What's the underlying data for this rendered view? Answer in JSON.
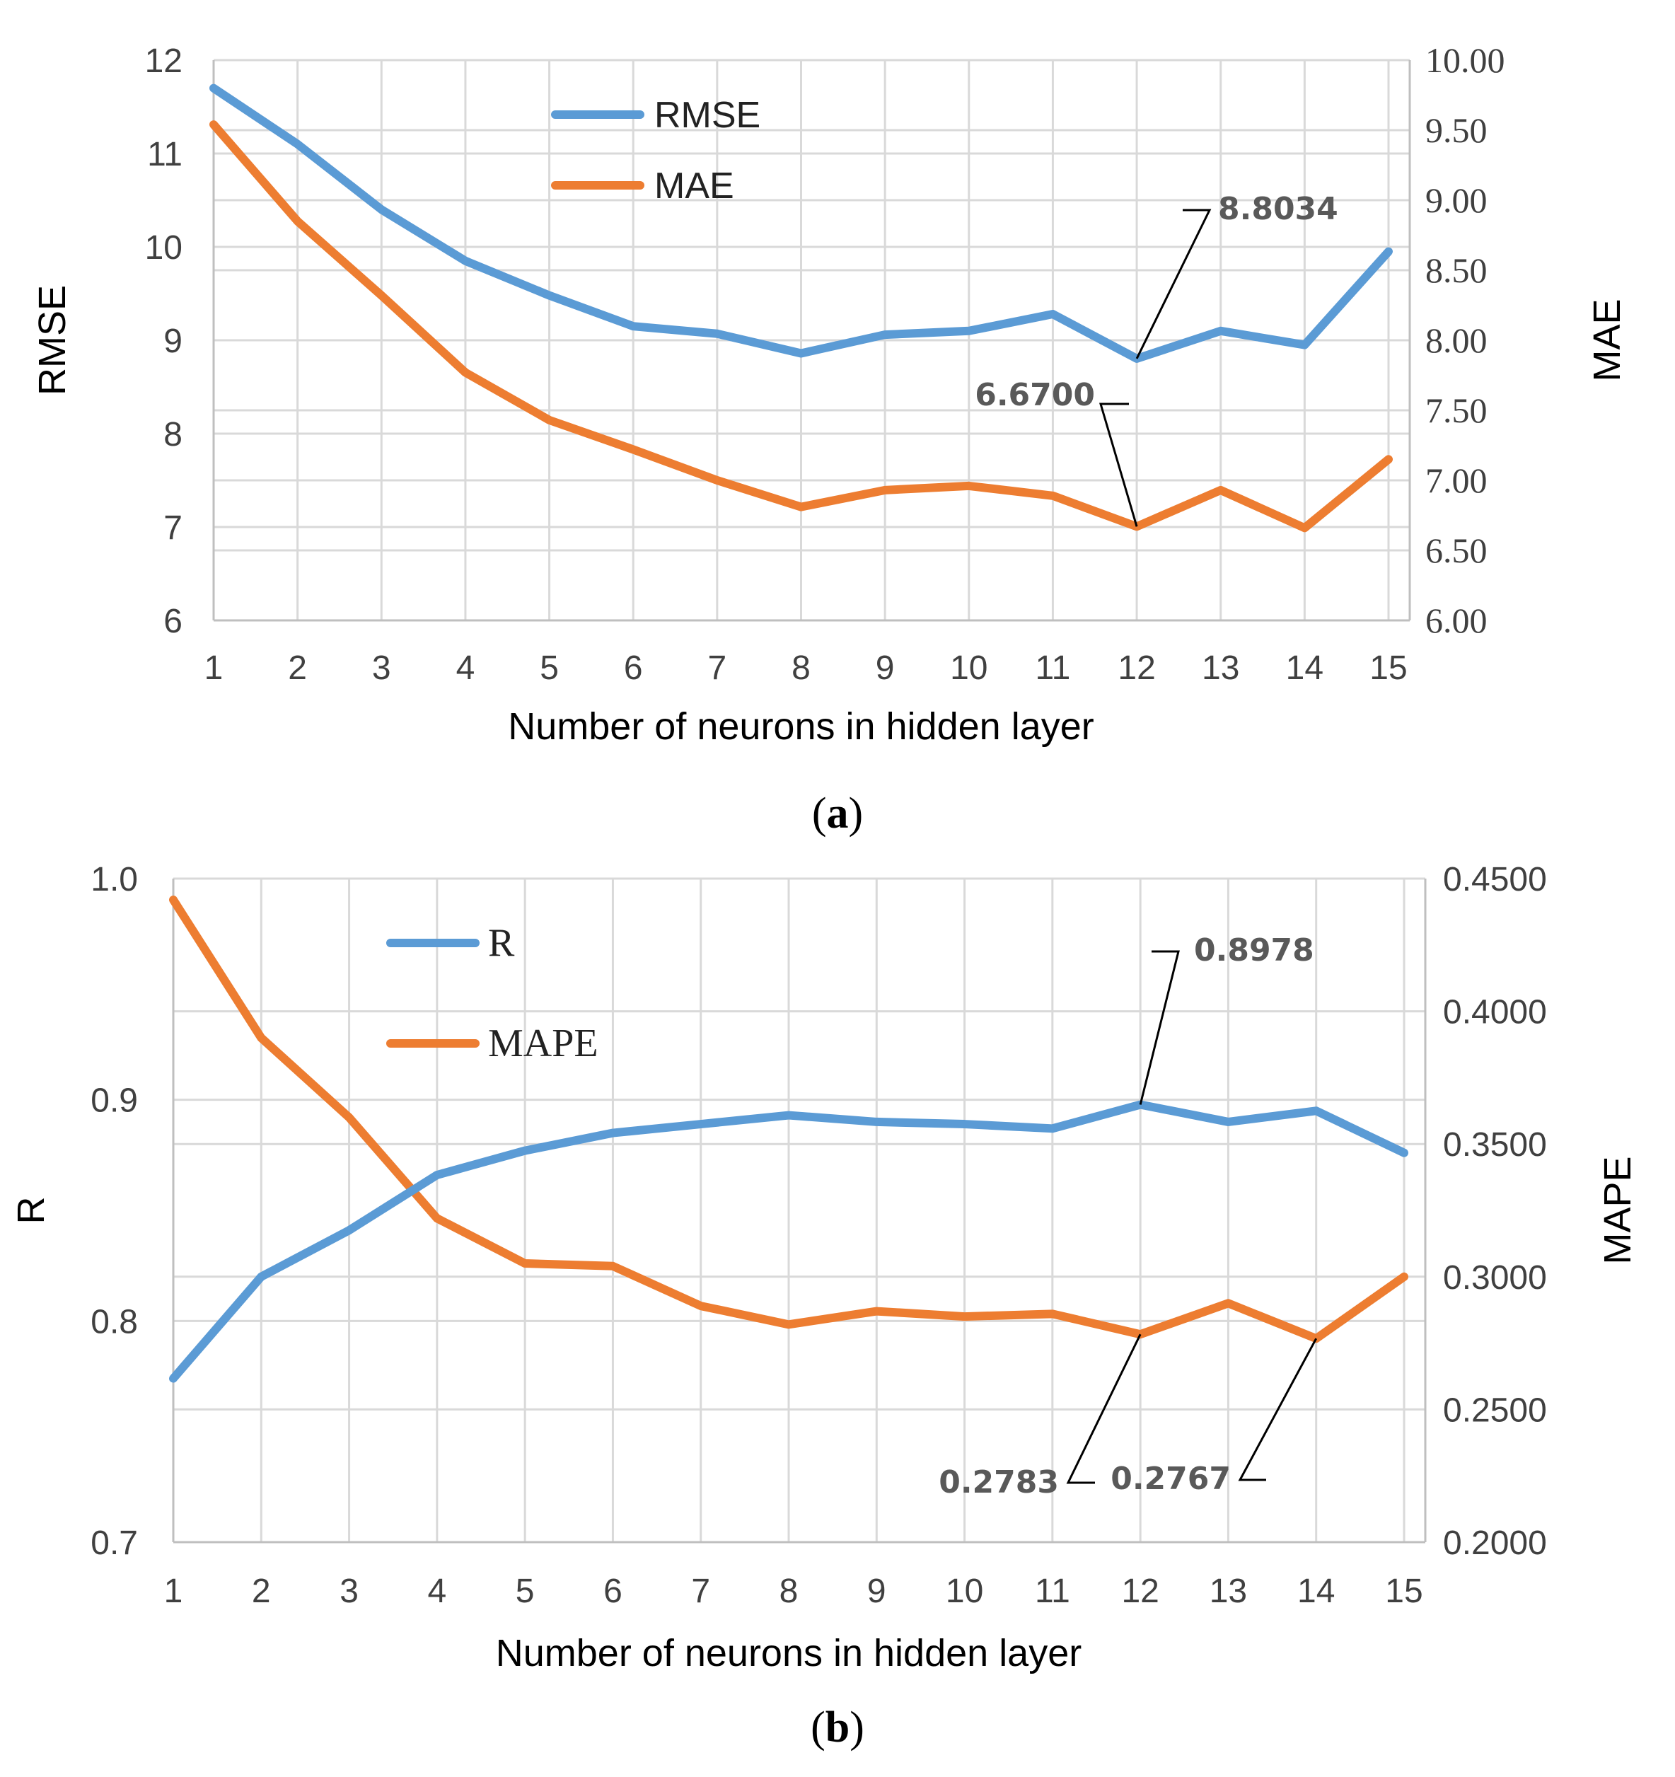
{
  "colors": {
    "blue": "#5b9bd5",
    "orange": "#ed7d31"
  },
  "chart_data": [
    {
      "type": "line",
      "panel_label": "(a)",
      "xlabel": "Number of neurons in hidden layer",
      "ylabel": "RMSE",
      "y2label": "MAE",
      "x": [
        1,
        2,
        3,
        4,
        5,
        6,
        7,
        8,
        9,
        10,
        11,
        12,
        13,
        14,
        15
      ],
      "x_tick_labels": [
        "1",
        "2",
        "3",
        "4",
        "5",
        "6",
        "7",
        "8",
        "9",
        "10",
        "11",
        "12",
        "13",
        "14",
        "15"
      ],
      "ylim": [
        6,
        12
      ],
      "y_tick_labels": [
        "6",
        "7",
        "8",
        "9",
        "10",
        "11",
        "12"
      ],
      "y2lim": [
        6.0,
        10.0
      ],
      "y2_tick_labels": [
        "6.00",
        "6.50",
        "7.00",
        "7.50",
        "8.00",
        "8.50",
        "9.00",
        "9.50",
        "10.00"
      ],
      "grid": true,
      "legend_position": "top-center",
      "series": [
        {
          "name": "RMSE",
          "axis": "left",
          "color": "blue",
          "values": [
            11.7,
            11.1,
            10.4,
            9.85,
            9.48,
            9.15,
            9.07,
            8.86,
            9.06,
            9.1,
            9.28,
            8.8034,
            9.1,
            8.95,
            9.95
          ]
        },
        {
          "name": "MAE",
          "axis": "right",
          "color": "orange",
          "values": [
            9.54,
            8.85,
            8.32,
            7.77,
            7.43,
            7.22,
            7.0,
            6.81,
            6.93,
            6.96,
            6.89,
            6.67,
            6.93,
            6.66,
            7.15
          ]
        }
      ],
      "annotations": [
        {
          "text": "8.8034",
          "series": "RMSE",
          "x": 12
        },
        {
          "text": "6.6700",
          "series": "MAE",
          "x": 12
        }
      ]
    },
    {
      "type": "line",
      "panel_label": "(b)",
      "xlabel": "Number of neurons in hidden layer",
      "ylabel": "R",
      "y2label": "MAPE",
      "x": [
        1,
        2,
        3,
        4,
        5,
        6,
        7,
        8,
        9,
        10,
        11,
        12,
        13,
        14,
        15
      ],
      "x_tick_labels": [
        "1",
        "2",
        "3",
        "4",
        "5",
        "6",
        "7",
        "8",
        "9",
        "10",
        "11",
        "12",
        "13",
        "14",
        "15"
      ],
      "ylim": [
        0.7,
        1.0
      ],
      "y_tick_labels": [
        "0.7",
        "0.8",
        "0.9",
        "1.0"
      ],
      "y2lim": [
        0.2,
        0.45
      ],
      "y2_tick_labels": [
        "0.2000",
        "0.2500",
        "0.3000",
        "0.3500",
        "0.4000",
        "0.4500"
      ],
      "grid": true,
      "legend_position": "top-left",
      "series": [
        {
          "name": "R",
          "axis": "left",
          "color": "blue",
          "values": [
            0.774,
            0.82,
            0.841,
            0.866,
            0.877,
            0.885,
            0.889,
            0.893,
            0.89,
            0.889,
            0.887,
            0.8978,
            0.89,
            0.895,
            0.876
          ]
        },
        {
          "name": "MAPE",
          "axis": "right",
          "color": "orange",
          "values": [
            0.442,
            0.39,
            0.36,
            0.322,
            0.305,
            0.304,
            0.289,
            0.282,
            0.287,
            0.285,
            0.286,
            0.2783,
            0.29,
            0.2767,
            0.3
          ]
        }
      ],
      "annotations": [
        {
          "text": "0.8978",
          "series": "R",
          "x": 12
        },
        {
          "text": "0.2783",
          "series": "MAPE",
          "x": 12
        },
        {
          "text": "0.2767",
          "series": "MAPE",
          "x": 14
        }
      ]
    }
  ]
}
